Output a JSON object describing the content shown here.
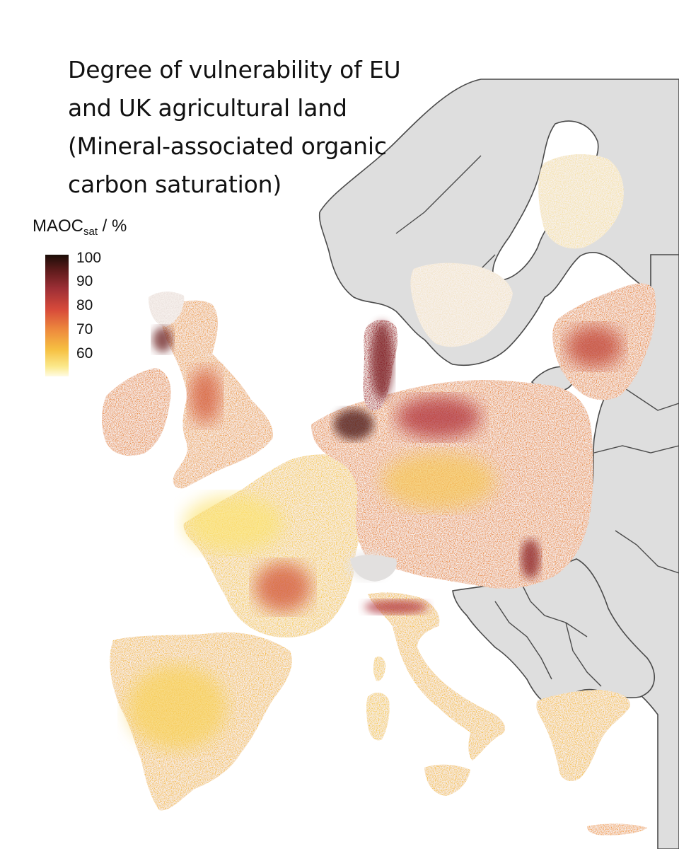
{
  "title": "Degree of vulnerability of EU and UK agricultural land (Mineral-associated organic carbon saturation)",
  "legend": {
    "label_main": "MAOC",
    "label_sub": "sat",
    "label_unit": " / %",
    "ticks": [
      "100",
      "90",
      "80",
      "70",
      "60"
    ]
  },
  "colors": {
    "land_no_data": "#dedede",
    "border": "#4a4a4a",
    "low": "#fbe373",
    "mid": "#ee8b3d",
    "high": "#b0323a",
    "max": "#2a1010"
  }
}
